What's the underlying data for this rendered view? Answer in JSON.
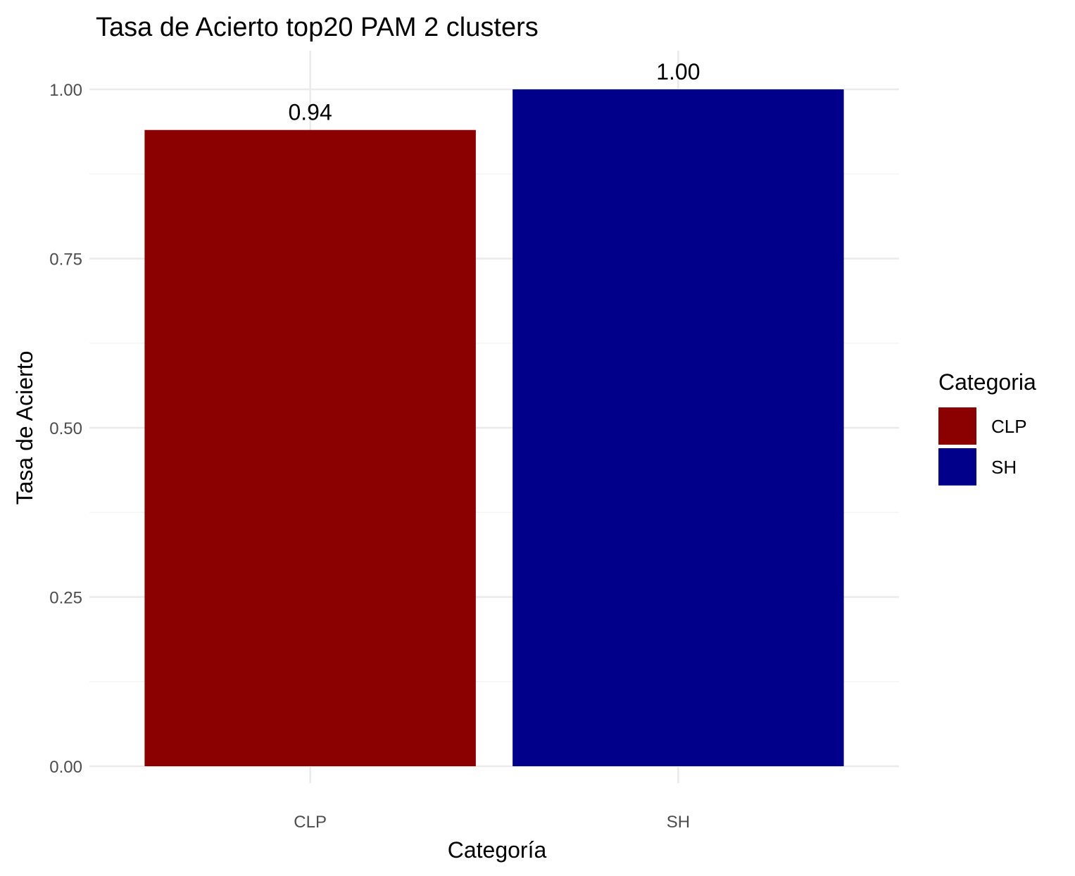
{
  "chart_data": {
    "type": "bar",
    "title": "Tasa de Acierto top20 PAM 2 clusters",
    "xlabel": "Categoría",
    "ylabel": "Tasa de Acierto",
    "categories": [
      "CLP",
      "SH"
    ],
    "values": [
      0.94,
      1.0
    ],
    "value_labels": [
      "0.94",
      "1.00"
    ],
    "colors": [
      "#8b0000",
      "#00008b"
    ],
    "ylim": [
      0,
      1
    ],
    "yticks": [
      0,
      0.25,
      0.5,
      0.75,
      1.0
    ],
    "ytick_labels": [
      "0.00",
      "0.25",
      "0.50",
      "0.75",
      "1.00"
    ],
    "grid": true,
    "legend": {
      "title": "Categoria",
      "position": "right",
      "entries": [
        {
          "label": "CLP",
          "color": "#8b0000"
        },
        {
          "label": "SH",
          "color": "#00008b"
        }
      ]
    }
  }
}
